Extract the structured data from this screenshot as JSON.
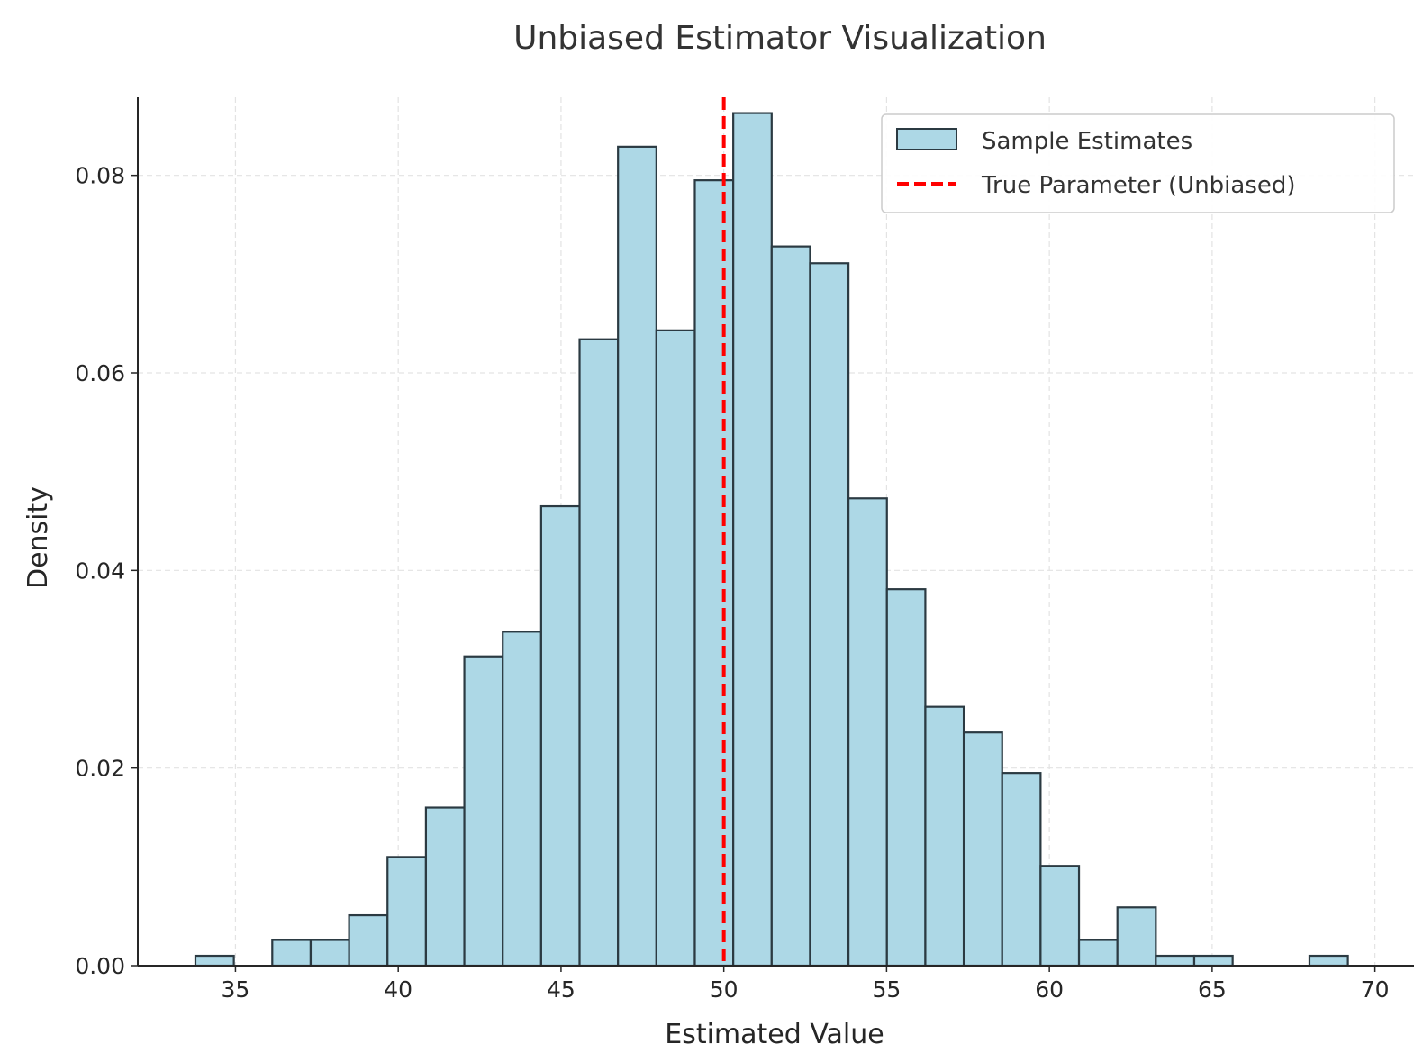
{
  "chart_data": {
    "type": "bar",
    "title": "Unbiased Estimator Visualization",
    "xlabel": "Estimated Value",
    "ylabel": "Density",
    "xlim": [
      32,
      71.2
    ],
    "ylim": [
      0,
      0.09
    ],
    "xticks": [
      35,
      40,
      45,
      50,
      55,
      60,
      65,
      70
    ],
    "yticks": [
      0.0,
      0.02,
      0.04,
      0.06,
      0.08
    ],
    "ytick_labels": [
      "0.00",
      "0.02",
      "0.04",
      "0.06",
      "0.08"
    ],
    "grid": true,
    "legend_position": "top-right",
    "series": [
      {
        "name": "Sample Estimates",
        "color": "#add8e6",
        "edge_color": "#2b3a42",
        "bin_edges": [
          33.77,
          34.95,
          36.13,
          37.31,
          38.49,
          39.67,
          40.85,
          42.03,
          43.21,
          44.39,
          45.57,
          46.75,
          47.93,
          49.11,
          50.29,
          51.47,
          52.65,
          53.83,
          55.01,
          56.19,
          57.37,
          58.55,
          59.73,
          60.91,
          62.09,
          63.27,
          64.45,
          65.63,
          66.81,
          67.99,
          69.17
        ],
        "densities": [
          0.001,
          0.0,
          0.0026,
          0.0026,
          0.0051,
          0.011,
          0.016,
          0.0313,
          0.0338,
          0.0465,
          0.0634,
          0.0829,
          0.0643,
          0.0795,
          0.0863,
          0.0728,
          0.0711,
          0.0473,
          0.0381,
          0.0262,
          0.0236,
          0.0195,
          0.0101,
          0.0026,
          0.0059,
          0.001,
          0.001,
          0.0,
          0.0,
          0.001
        ]
      }
    ],
    "reference_line": {
      "name": "True Parameter (Unbiased)",
      "x": 50,
      "color": "#ff0000",
      "style": "dashed"
    }
  }
}
